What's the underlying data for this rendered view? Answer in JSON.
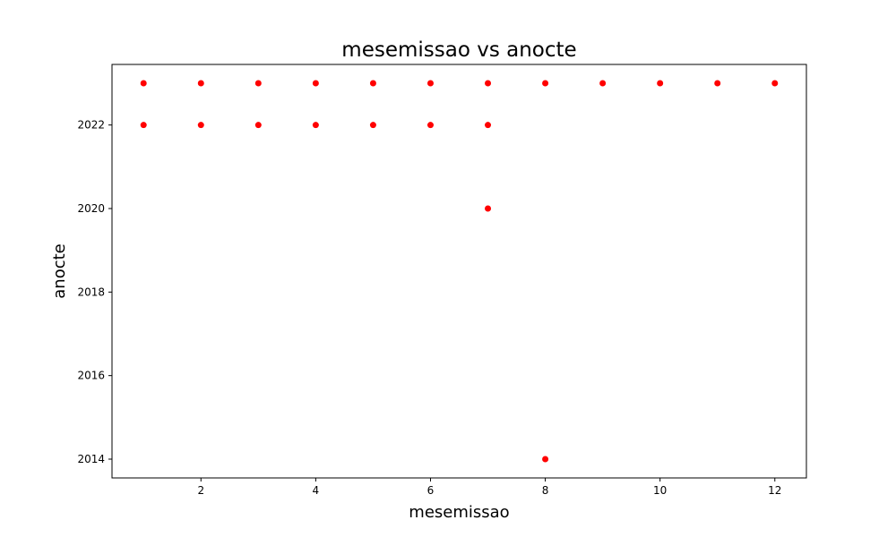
{
  "chart_data": {
    "type": "scatter",
    "title": "mesemissao vs anocte",
    "xlabel": "mesemissao",
    "ylabel": "anocte",
    "xlim": [
      0.45,
      12.55
    ],
    "ylim": [
      2013.55,
      2023.45
    ],
    "x_ticks": [
      2,
      4,
      6,
      8,
      10,
      12
    ],
    "y_ticks": [
      2014,
      2016,
      2018,
      2020,
      2022
    ],
    "grid": false,
    "marker_color": "#ff0000",
    "points": [
      {
        "x": 1,
        "y": 2023
      },
      {
        "x": 2,
        "y": 2023
      },
      {
        "x": 3,
        "y": 2023
      },
      {
        "x": 4,
        "y": 2023
      },
      {
        "x": 5,
        "y": 2023
      },
      {
        "x": 6,
        "y": 2023
      },
      {
        "x": 7,
        "y": 2023
      },
      {
        "x": 8,
        "y": 2023
      },
      {
        "x": 9,
        "y": 2023
      },
      {
        "x": 10,
        "y": 2023
      },
      {
        "x": 11,
        "y": 2023
      },
      {
        "x": 12,
        "y": 2023
      },
      {
        "x": 1,
        "y": 2022
      },
      {
        "x": 2,
        "y": 2022
      },
      {
        "x": 3,
        "y": 2022
      },
      {
        "x": 4,
        "y": 2022
      },
      {
        "x": 5,
        "y": 2022
      },
      {
        "x": 6,
        "y": 2022
      },
      {
        "x": 7,
        "y": 2022
      },
      {
        "x": 7,
        "y": 2020
      },
      {
        "x": 8,
        "y": 2014
      }
    ]
  }
}
